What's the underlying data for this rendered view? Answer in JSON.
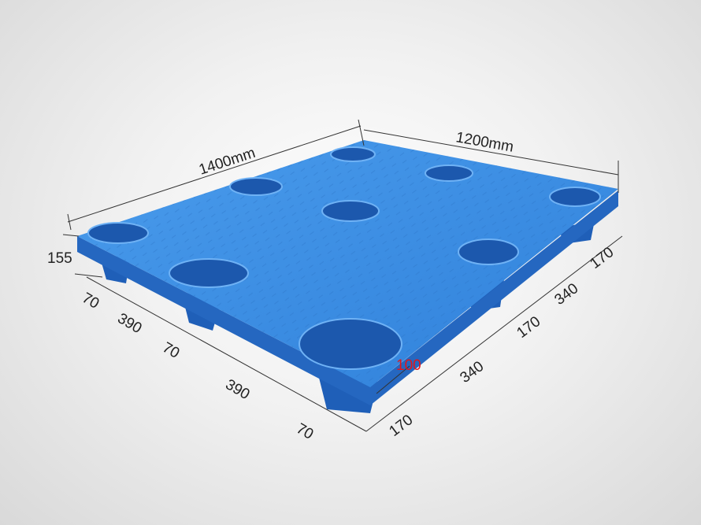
{
  "product": "plastic pallet",
  "colors": {
    "pallet": "#3d8fe3",
    "pallet_dark": "#1f5fb8",
    "highlight_dimension": "#e0161b"
  },
  "dimensions": {
    "length": "1400mm",
    "width": "1200mm",
    "height": "155",
    "left_side": [
      "70",
      "390",
      "70",
      "390",
      "70"
    ],
    "right_side": [
      "170",
      "340",
      "170",
      "340",
      "170"
    ],
    "foot": "100"
  }
}
